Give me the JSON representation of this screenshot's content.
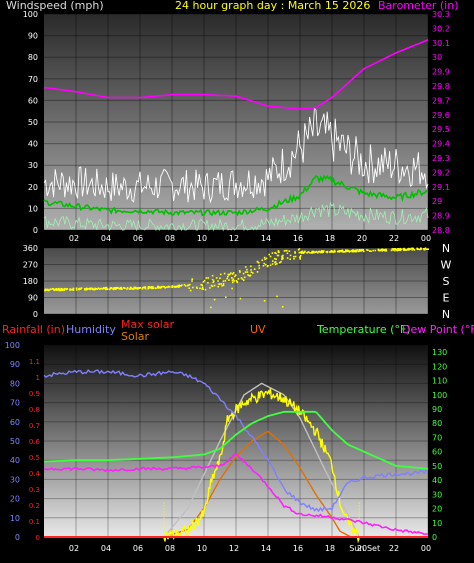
{
  "colors": {
    "background": "#000000",
    "plot_top": "#3a3a3a",
    "plot_bottom": "#a8a8a8",
    "wind_label": "#dcdcdc",
    "title": "#ffff00",
    "barometer": "#ff00ff",
    "gust": "#ffffff",
    "wind_avg": "#00c000",
    "wind_speed": "#a0f0b0",
    "wind_dir": "#ffff00",
    "rain": "#ff2020",
    "humidity": "#8080ff",
    "max_solar": "#ff2020",
    "solar": "#e08000",
    "uv": "#ff6000",
    "temperature": "#40ff40",
    "dew_point": "#ff20ff",
    "sunrise_sunset": "#ffff00",
    "max_solar_curve": "#c0c0c0",
    "solar_curve": "#ffff00",
    "uv_curve": "#e07000"
  },
  "chart_data": [
    {
      "type": "line",
      "title": "24 hour graph day : March 15 2026",
      "left_axis_label": "Windspeed (mph)",
      "right_axis_label": "Barometer (in)",
      "x_ticks": [
        "02",
        "04",
        "06",
        "08",
        "10",
        "12",
        "14",
        "16",
        "18",
        "20",
        "22",
        "00"
      ],
      "x_hours": [
        2,
        4,
        6,
        8,
        10,
        12,
        14,
        16,
        18,
        20,
        22,
        24
      ],
      "ylim_left": [
        0,
        100
      ],
      "y_ticks_left": [
        0,
        10,
        20,
        30,
        40,
        50,
        60,
        70,
        80,
        90,
        100
      ],
      "ylim_right": [
        28.8,
        30.3
      ],
      "y_ticks_right": [
        "28.8",
        "28.9",
        "29",
        "29.1",
        "29.2",
        "29.3",
        "29.4",
        "29.5",
        "29.6",
        "29.7",
        "29.8",
        "29.9",
        "30",
        "30.1",
        "30.2",
        "30.3"
      ],
      "series": {
        "barometer_in": {
          "x": [
            0,
            2,
            4,
            6,
            8,
            10,
            12,
            14,
            16,
            17,
            18,
            19,
            20,
            22,
            24
          ],
          "y": [
            29.79,
            29.76,
            29.72,
            29.72,
            29.74,
            29.74,
            29.73,
            29.66,
            29.64,
            29.65,
            29.72,
            29.82,
            29.92,
            30.03,
            30.12
          ]
        },
        "gust_mph": {
          "x": [
            0,
            2,
            4,
            6,
            8,
            10,
            12,
            14,
            16,
            17,
            18,
            19,
            20,
            22,
            24
          ],
          "y": [
            22,
            22,
            20,
            20,
            21,
            20,
            22,
            24,
            38,
            46,
            42,
            36,
            31,
            30,
            28
          ]
        },
        "wind_avg_mph": {
          "x": [
            0,
            2,
            4,
            6,
            8,
            10,
            12,
            14,
            16,
            17,
            18,
            19,
            20,
            22,
            24
          ],
          "y": [
            13,
            11,
            9,
            9,
            8,
            8,
            8,
            10,
            16,
            24,
            23,
            20,
            17,
            15,
            18
          ]
        },
        "wind_speed_mph": {
          "x": [
            0,
            2,
            4,
            6,
            8,
            10,
            12,
            14,
            16,
            17,
            18,
            19,
            20,
            22,
            24
          ],
          "y": [
            4,
            3,
            2,
            2,
            2,
            2,
            2,
            3,
            6,
            10,
            9,
            8,
            7,
            6,
            7
          ]
        }
      }
    },
    {
      "type": "scatter",
      "x_ticks": [
        "02",
        "04",
        "06",
        "08",
        "10",
        "12",
        "14",
        "16",
        "18",
        "20",
        "22",
        "00"
      ],
      "y_ticks": [
        0,
        90,
        180,
        270,
        360
      ],
      "ylim": [
        0,
        360
      ],
      "compass": [
        "N",
        "W",
        "S",
        "E",
        "N"
      ],
      "series": {
        "wind_direction_deg": {
          "x": [
            0,
            2,
            4,
            6,
            8,
            10,
            11,
            12,
            13,
            14,
            15,
            16,
            18,
            20,
            22,
            24
          ],
          "y": [
            130,
            135,
            138,
            140,
            148,
            165,
            185,
            200,
            240,
            290,
            320,
            335,
            340,
            345,
            350,
            355
          ]
        }
      }
    },
    {
      "type": "line",
      "legend": {
        "rainfall": "Rainfall (in)",
        "humidity": "Humidity",
        "max_solar": "Max solar",
        "solar": "Solar",
        "uv": "UV",
        "temperature": "Temperature (°F)",
        "dew_point": "Dew Point (°F)"
      },
      "x_ticks": [
        "02",
        "04",
        "06",
        "08",
        "10",
        "12",
        "14",
        "16",
        "18",
        "20",
        "22",
        "00"
      ],
      "ylim_humidity": [
        0,
        100
      ],
      "y_ticks_humidity": [
        0,
        10,
        20,
        30,
        40,
        50,
        60,
        70,
        80,
        90,
        100
      ],
      "ylim_rain": [
        0,
        1.2
      ],
      "y_ticks_rain": [
        "0",
        "0.1",
        "0.2",
        "0.3",
        "0.4",
        "0.5",
        "0.6",
        "0.7",
        "0.8",
        "0.9",
        "1",
        "1.1"
      ],
      "ylim_temp": [
        0,
        135
      ],
      "y_ticks_temp": [
        0,
        10,
        20,
        30,
        40,
        50,
        60,
        70,
        80,
        90,
        100,
        110,
        120,
        130
      ],
      "sun_labels": {
        "sunrise": "08",
        "sunset": "Sun Set"
      },
      "sunrise_hour": 7.5,
      "sunset_hour": 19.7,
      "series": {
        "humidity_pct": {
          "x": [
            0,
            2,
            4,
            6,
            8,
            9,
            10,
            11,
            12,
            13,
            14,
            15,
            16,
            17,
            18,
            18.5,
            19,
            20,
            21,
            22,
            23,
            24
          ],
          "y": [
            84,
            86,
            86,
            84,
            86,
            84,
            80,
            72,
            63,
            52,
            40,
            25,
            18,
            14,
            15,
            22,
            28,
            31,
            32,
            33,
            33,
            34
          ]
        },
        "temperature_f": {
          "x": [
            0,
            2,
            4,
            6,
            8,
            10,
            11,
            12,
            13,
            14,
            15,
            16,
            17,
            18,
            19,
            20,
            22,
            24
          ],
          "y": [
            53,
            54,
            54,
            55,
            56,
            58,
            62,
            72,
            80,
            85,
            88,
            88,
            88,
            75,
            65,
            60,
            50,
            48
          ]
        },
        "dew_point_f": {
          "x": [
            0,
            2,
            4,
            6,
            8,
            10,
            11,
            12,
            13,
            14,
            15,
            16,
            17,
            18,
            19,
            20,
            22,
            24
          ],
          "y": [
            48,
            48,
            47,
            48,
            48,
            49,
            50,
            58,
            48,
            36,
            22,
            16,
            15,
            14,
            12,
            10,
            5,
            2
          ]
        },
        "max_solar_pct": {
          "x": [
            7.5,
            9,
            11,
            12.5,
            13.6,
            15,
            16,
            17.5,
            19.7
          ],
          "y": [
            0,
            15,
            50,
            74,
            80,
            74,
            62,
            36,
            0
          ]
        },
        "solar_pct": {
          "x": [
            7.5,
            9,
            10,
            10.5,
            11,
            11.5,
            12,
            12.5,
            13,
            14,
            15,
            16,
            17,
            18,
            18.5,
            19,
            19.7
          ],
          "y": [
            0,
            3,
            12,
            30,
            40,
            62,
            66,
            70,
            72,
            75,
            72,
            65,
            55,
            38,
            18,
            7,
            0
          ]
        },
        "uv_index_scaled": {
          "x": [
            7.5,
            9,
            10,
            11,
            12,
            13,
            14,
            15,
            16,
            17,
            18,
            18.5,
            19.2
          ],
          "y": [
            0,
            4,
            15,
            30,
            42,
            50,
            55,
            48,
            36,
            22,
            10,
            3,
            0
          ]
        },
        "rain_in": {
          "x": [
            0,
            24
          ],
          "y": [
            0,
            0
          ]
        }
      }
    }
  ]
}
